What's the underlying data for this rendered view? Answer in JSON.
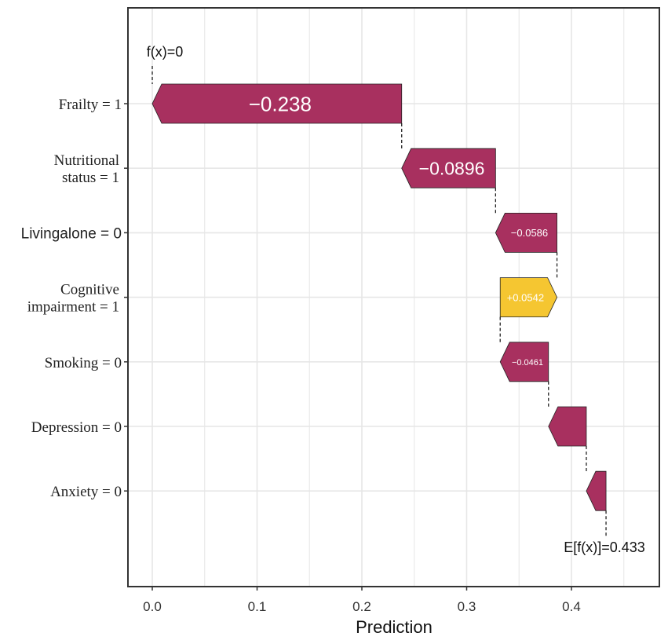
{
  "chart_data": {
    "type": "waterfall",
    "xlabel": "Prediction",
    "xlim": [
      -0.02,
      0.48
    ],
    "xticks": [
      0.0,
      0.1,
      0.2,
      0.3,
      0.4
    ],
    "xtick_labels": [
      "0.0",
      "0.1",
      "0.2",
      "0.3",
      "0.4"
    ],
    "fx_label": "f(x)=0",
    "efx_label": "E[f(x)]=0.433",
    "fx_value": 0.0,
    "efx_value": 0.433,
    "features": [
      {
        "lines": [
          "Frailty = 1"
        ],
        "font": "serif",
        "start": 0.238,
        "end": 0.0,
        "value_label": "−0.238",
        "show_label": true,
        "label_size": 26
      },
      {
        "lines": [
          "Nutritional",
          "status = 1"
        ],
        "font": "serif",
        "start": 0.3276,
        "end": 0.238,
        "value_label": "−0.0896",
        "show_label": true,
        "label_size": 23
      },
      {
        "lines": [
          "Livingalone = 0"
        ],
        "font": "sans",
        "start": 0.3862,
        "end": 0.3276,
        "value_label": "−0.0586",
        "show_label": true,
        "label_size": 13
      },
      {
        "lines": [
          "Cognitive",
          "impairment = 1"
        ],
        "font": "serif",
        "start": 0.332,
        "end": 0.3862,
        "value_label": "+0.0542",
        "show_label": true,
        "label_size": 13
      },
      {
        "lines": [
          "Smoking = 0"
        ],
        "font": "serif",
        "start": 0.3781,
        "end": 0.332,
        "value_label": "−0.0461",
        "show_label": true,
        "label_size": 11
      },
      {
        "lines": [
          "Depression = 0"
        ],
        "font": "serif",
        "start": 0.4142,
        "end": 0.3781,
        "value_label": "−0.0361",
        "show_label": false,
        "label_size": 11
      },
      {
        "lines": [
          "Anxiety = 0"
        ],
        "font": "serif",
        "start": 0.433,
        "end": 0.4142,
        "value_label": "−0.0188",
        "show_label": false,
        "label_size": 11
      }
    ],
    "colors": {
      "negative": "#a8305f",
      "positive": "#f5c631",
      "grid": "#e6e6e6",
      "frame": "#333333"
    }
  }
}
